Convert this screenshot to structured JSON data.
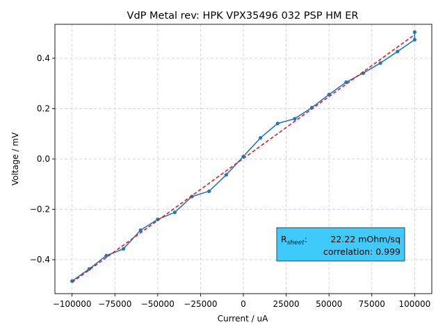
{
  "chart_data": {
    "type": "line",
    "title": "VdP Metal rev: HPK VPX35496 032 PSP HM ER",
    "xlabel": "Current / uA",
    "ylabel": "Voltage / mV",
    "xlim": [
      -110000,
      110000
    ],
    "ylim": [
      -0.535,
      0.535
    ],
    "x_ticks": [
      -100000,
      -75000,
      -50000,
      -25000,
      0,
      25000,
      50000,
      75000,
      100000
    ],
    "x_tick_labels": [
      "−100000",
      "−75000",
      "−50000",
      "−25000",
      "0",
      "25000",
      "50000",
      "75000",
      "100000"
    ],
    "y_ticks": [
      -0.4,
      -0.2,
      0.0,
      0.2,
      0.4
    ],
    "y_tick_labels": [
      "−0.4",
      "−0.2",
      "0.0",
      "0.2",
      "0.4"
    ],
    "grid": true,
    "series": [
      {
        "color": "#1f77b4",
        "style": "solid-with-markers",
        "x": [
          -100000,
          -90000,
          -80000,
          -70000,
          -60000,
          -50000,
          -40000,
          -30000,
          -20000,
          -10000,
          0,
          10000,
          20000,
          30000,
          40000,
          50000,
          60000,
          70000,
          80000,
          90000,
          100000,
          100000
        ],
        "y": [
          -0.485,
          -0.437,
          -0.384,
          -0.357,
          -0.283,
          -0.24,
          -0.212,
          -0.149,
          -0.128,
          -0.063,
          0.01,
          0.084,
          0.141,
          0.16,
          0.204,
          0.256,
          0.305,
          0.341,
          0.381,
          0.427,
          0.474,
          0.504
        ]
      },
      {
        "color": "#e8181a",
        "style": "dashed",
        "x": [
          -100000,
          100000
        ],
        "y": [
          -0.49,
          0.494
        ]
      }
    ],
    "annotation": {
      "label_prefix": "R",
      "label_subscript": "sheet",
      "label_suffix": ":",
      "value_text": "22.22 mOhm/sq",
      "correlation_text": "correlation: 0.999",
      "background": "#3ecbfc",
      "position": "lower-right"
    }
  }
}
